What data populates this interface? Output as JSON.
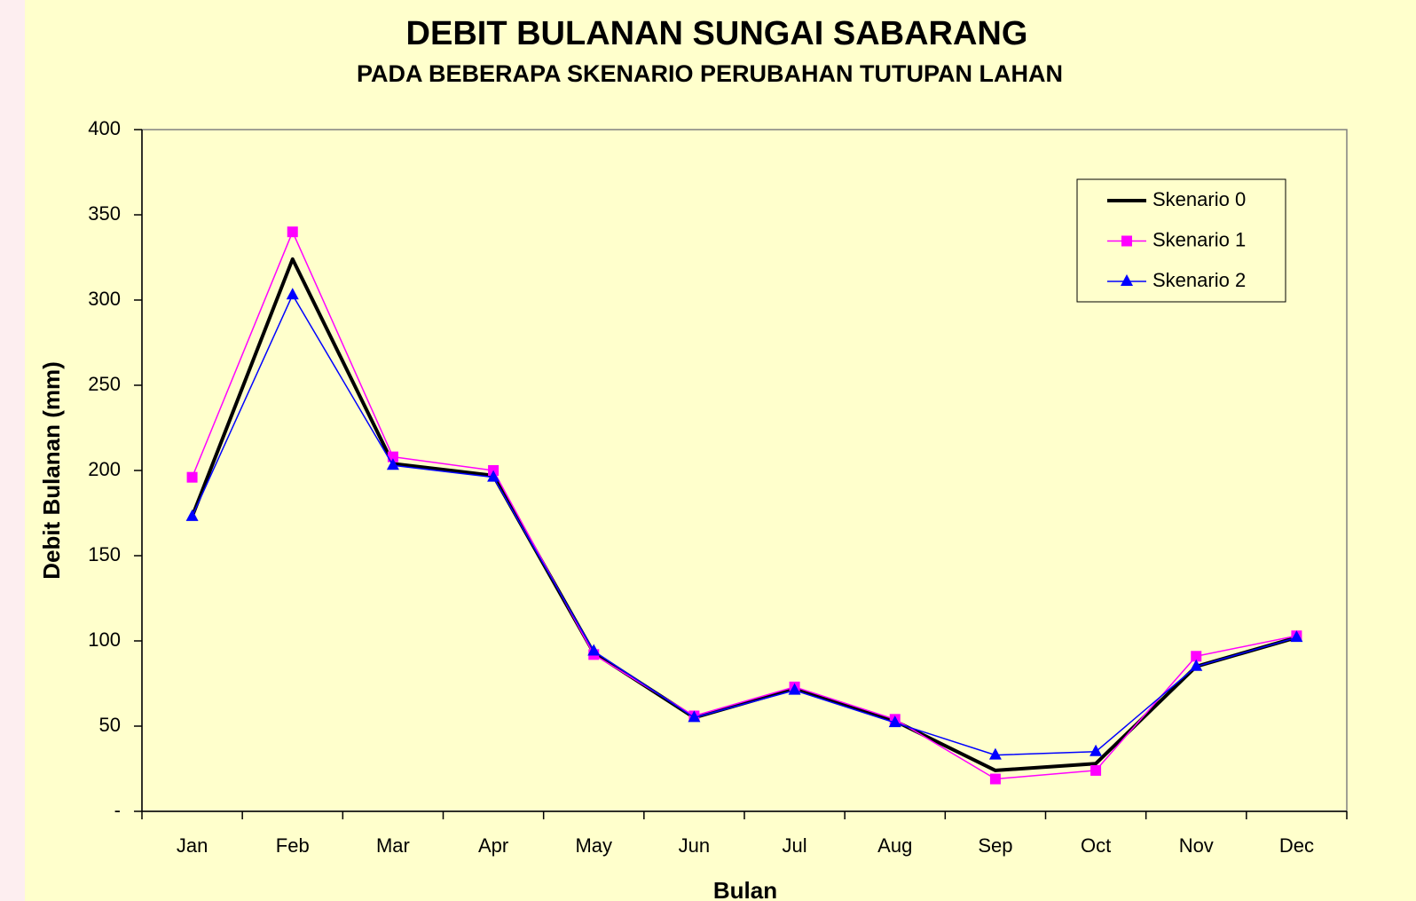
{
  "chart_data": {
    "type": "line",
    "title": "DEBIT BULANAN SUNGAI SABARANG",
    "subtitle": "PADA BEBERAPA SKENARIO PERUBAHAN TUTUPAN LAHAN",
    "xlabel": "Bulan",
    "ylabel": "Debit Bulanan (mm)",
    "categories": [
      "Jan",
      "Feb",
      "Mar",
      "Apr",
      "May",
      "Jun",
      "Jul",
      "Aug",
      "Sep",
      "Oct",
      "Nov",
      "Dec"
    ],
    "series": [
      {
        "name": "Skenario 0",
        "color": "#000000",
        "marker": "none",
        "width": 4,
        "values": [
          173,
          324,
          204,
          197,
          93,
          55,
          72,
          53,
          24,
          28,
          85,
          102
        ]
      },
      {
        "name": "Skenario 1",
        "color": "#ff00ff",
        "marker": "square",
        "width": 1.5,
        "values": [
          196,
          340,
          208,
          200,
          92,
          56,
          73,
          54,
          19,
          24,
          91,
          103
        ]
      },
      {
        "name": "Skenario 2",
        "color": "#0000ff",
        "marker": "triangle",
        "width": 1.5,
        "values": [
          173,
          303,
          203,
          196,
          94,
          55,
          71,
          52,
          33,
          35,
          85,
          102
        ]
      }
    ],
    "ylim": [
      0,
      400
    ],
    "yticks": [
      {
        "value": 0,
        "label": "-"
      },
      50,
      100,
      150,
      200,
      250,
      300,
      350,
      400
    ],
    "legend": "upper right",
    "grid": false
  }
}
